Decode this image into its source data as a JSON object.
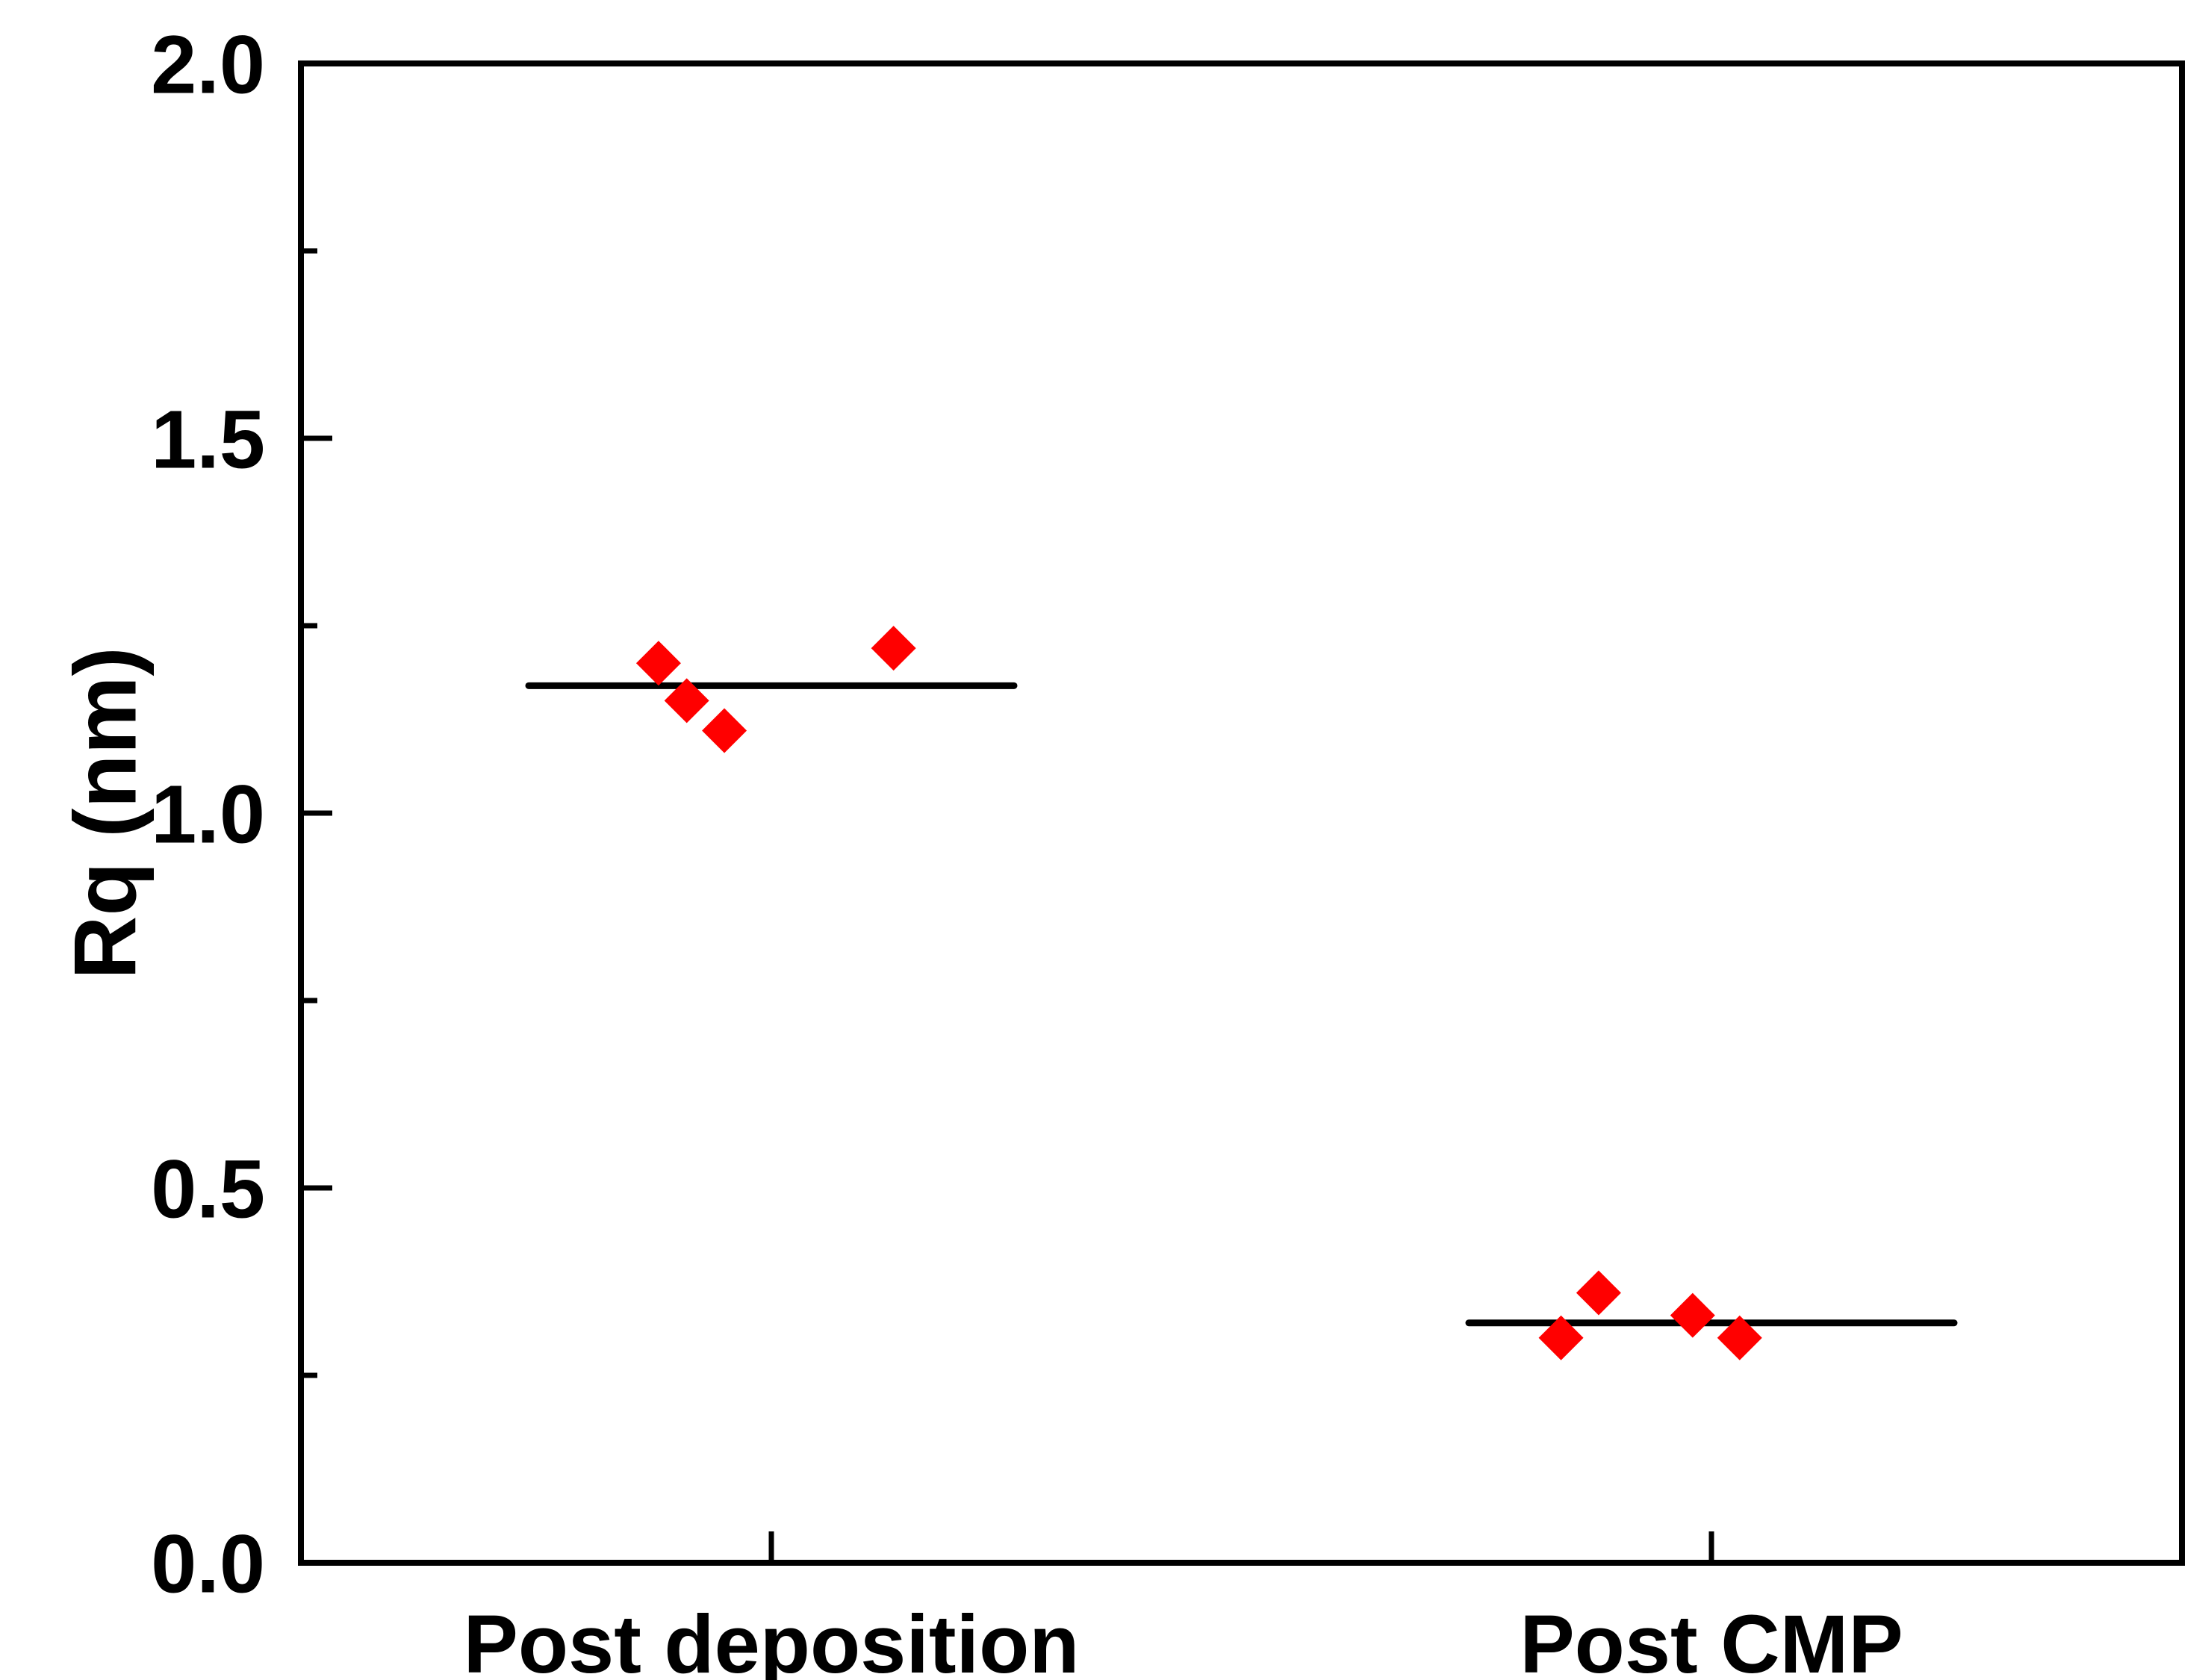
{
  "chart_data": {
    "type": "scatter",
    "title": "",
    "xlabel": "",
    "ylabel": "Rq (nm)",
    "ylim": [
      0,
      2.0
    ],
    "yticks_major": [
      "0.0",
      "0.5",
      "1.0",
      "1.5",
      "2.0"
    ],
    "y_minor_step": 0.25,
    "grid": false,
    "legend": "none",
    "marker": "diamond",
    "marker_color": "#ff0000",
    "categories": [
      "Post deposition",
      "Post CMP"
    ],
    "series": [
      {
        "category": "Post deposition",
        "mean": 1.17,
        "points": [
          {
            "offset": -0.12,
            "y": 1.2
          },
          {
            "offset": -0.09,
            "y": 1.15
          },
          {
            "offset": -0.05,
            "y": 1.11
          },
          {
            "offset": 0.13,
            "y": 1.22
          }
        ]
      },
      {
        "category": "Post CMP",
        "mean": 0.32,
        "points": [
          {
            "offset": -0.16,
            "y": 0.3
          },
          {
            "offset": -0.12,
            "y": 0.36
          },
          {
            "offset": -0.02,
            "y": 0.33
          },
          {
            "offset": 0.03,
            "y": 0.3
          }
        ]
      }
    ]
  }
}
